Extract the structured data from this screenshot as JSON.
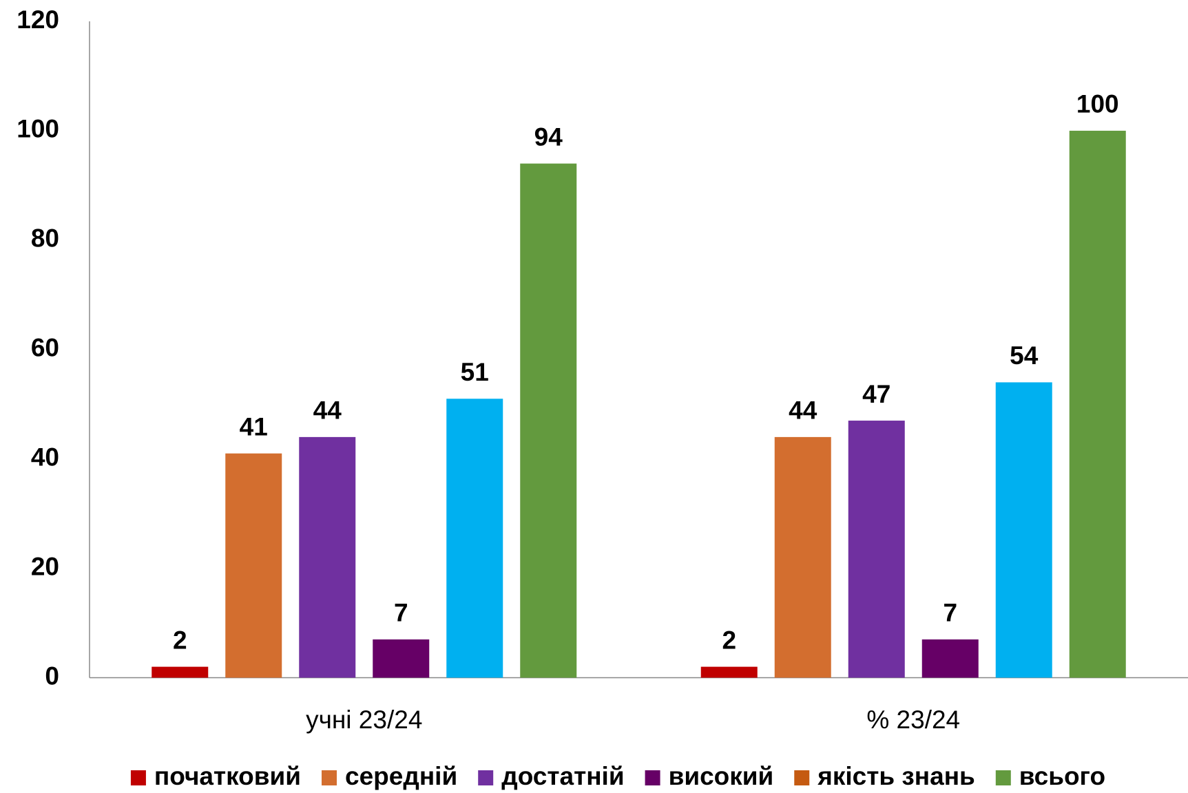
{
  "chart_data": {
    "type": "bar",
    "categories": [
      "учні 23/24",
      "% 23/24"
    ],
    "series": [
      {
        "name": "початковий",
        "color": "#c00000",
        "values": [
          2,
          2
        ]
      },
      {
        "name": "середній",
        "color": "#d36e2f",
        "values": [
          41,
          44
        ]
      },
      {
        "name": "достатній",
        "color": "#7030a0",
        "values": [
          44,
          47
        ]
      },
      {
        "name": "високий",
        "color": "#660066",
        "values": [
          7,
          7
        ]
      },
      {
        "name": "якість знань",
        "color": "#00b0f0",
        "legend_color": "#c55a11",
        "values": [
          51,
          54
        ]
      },
      {
        "name": "всього",
        "color": "#639a3e",
        "values": [
          94,
          100
        ]
      }
    ],
    "ylim": [
      0,
      120
    ],
    "yticks": [
      0,
      20,
      40,
      60,
      80,
      100,
      120
    ],
    "grid": false,
    "legend": "bottom"
  }
}
